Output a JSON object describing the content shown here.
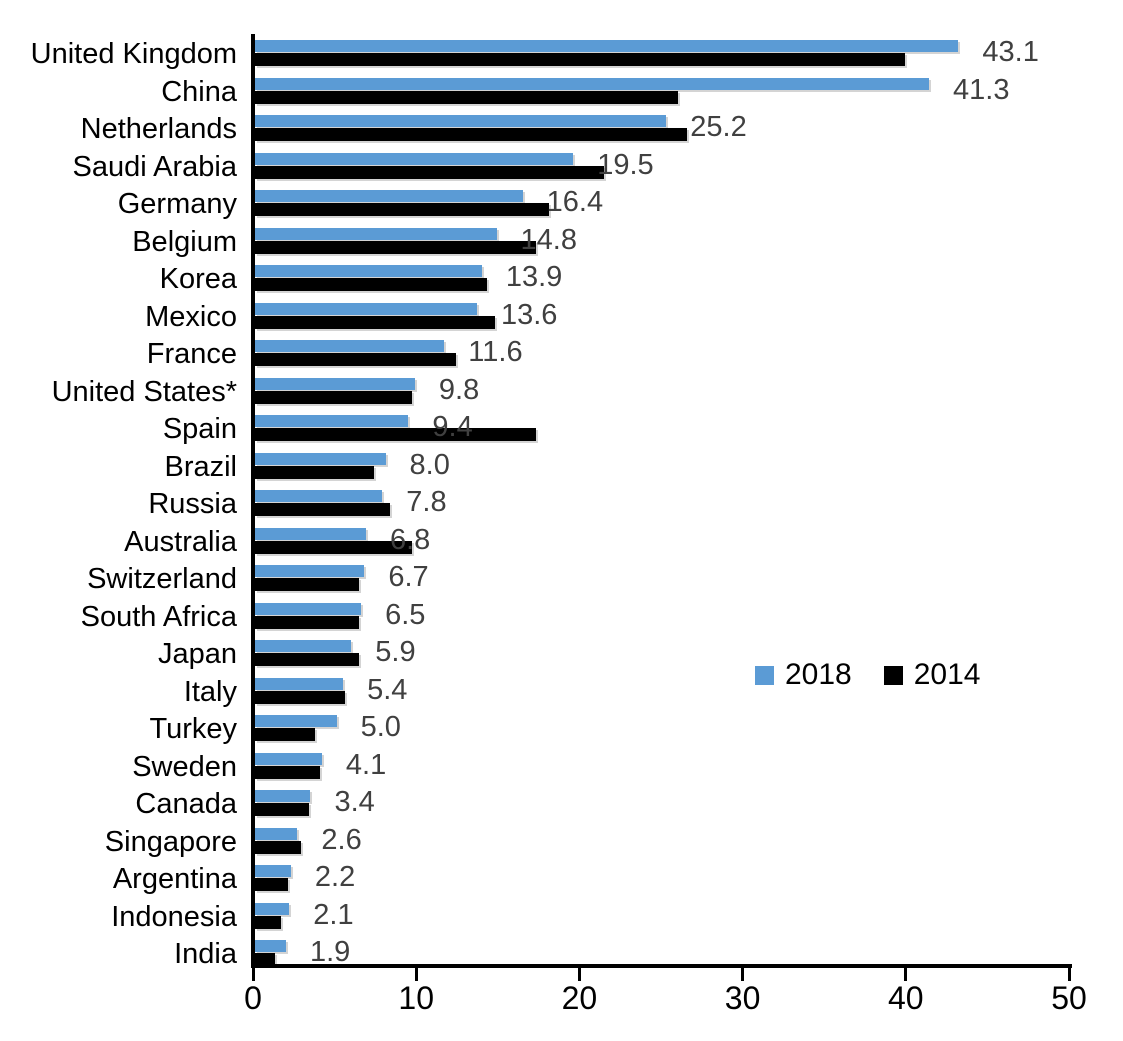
{
  "chart_data": {
    "type": "bar",
    "orientation": "horizontal",
    "title": "",
    "xlabel": "",
    "ylabel": "",
    "xlim": [
      0,
      50
    ],
    "x_ticks": [
      0,
      10,
      20,
      30,
      40,
      50
    ],
    "grid": false,
    "legend_position": "middle-right",
    "categories": [
      "United Kingdom",
      "China",
      "Netherlands",
      "Saudi Arabia",
      "Germany",
      "Belgium",
      "Korea",
      "Mexico",
      "France",
      "United States*",
      "Spain",
      "Brazil",
      "Russia",
      "Australia",
      "Switzerland",
      "South Africa",
      "Japan",
      "Italy",
      "Turkey",
      "Sweden",
      "Canada",
      "Singapore",
      "Argentina",
      "Indonesia",
      "India"
    ],
    "series": [
      {
        "name": "2018",
        "color": "#5B9BD5",
        "values": [
          43.1,
          41.3,
          25.2,
          19.5,
          16.4,
          14.8,
          13.9,
          13.6,
          11.6,
          9.8,
          9.4,
          8.0,
          7.8,
          6.8,
          6.7,
          6.5,
          5.9,
          5.4,
          5.0,
          4.1,
          3.4,
          2.6,
          2.2,
          2.1,
          1.9
        ]
      },
      {
        "name": "2014",
        "color": "#000000",
        "values": [
          39.8,
          25.9,
          26.5,
          21.4,
          18.0,
          17.2,
          14.2,
          14.7,
          12.3,
          9.6,
          17.2,
          7.3,
          8.3,
          9.6,
          6.4,
          6.4,
          6.4,
          5.5,
          3.7,
          4.0,
          3.3,
          2.8,
          2.0,
          1.6,
          1.2
        ]
      }
    ],
    "data_labels": {
      "labeled_series": "2018",
      "format": "one-decimal",
      "color": "#404040",
      "values": [
        "43.1",
        "41.3",
        "25.2",
        "19.5",
        "16.4",
        "14.8",
        "13.9",
        "13.6",
        "11.6",
        "9.8",
        "9.4",
        "8.0",
        "7.8",
        "6.8",
        "6.7",
        "6.5",
        "5.9",
        "5.4",
        "5.0",
        "4.1",
        "3.4",
        "2.6",
        "2.2",
        "2.1",
        "1.9"
      ]
    }
  },
  "colors": {
    "background": "#FFFFFF",
    "axis": "#000000",
    "bar_2018": "#5B9BD5",
    "bar_2014": "#000000",
    "value_label": "#404040"
  }
}
